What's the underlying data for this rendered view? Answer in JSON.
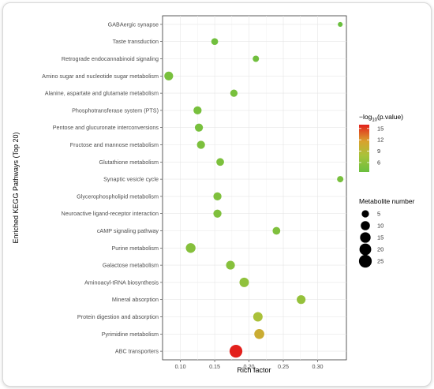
{
  "chart_data": {
    "type": "scatter",
    "title": "",
    "xlabel": "Rich factor",
    "ylabel": "Enriched KEGG Pathways (Top 20)",
    "xlim": [
      0.074,
      0.342
    ],
    "xticks": [
      0.1,
      0.15,
      0.2,
      0.25,
      0.3
    ],
    "xtick_labels": [
      "0.10",
      "0.15",
      "0.20",
      "0.25",
      "0.30"
    ],
    "grid": true,
    "legend_placement": "right",
    "categories": [
      "GABAergic synapse",
      "Taste transduction",
      "Retrograde endocannabinoid signaling",
      "Amino sugar and nucleotide sugar metabolism",
      "Alanine, aspartate and glutamate metabolism",
      "Phosphotransferase system (PTS)",
      "Pentose and glucuronate interconversions",
      "Fructose and mannose metabolism",
      "Glutathione metabolism",
      "Synaptic vesicle cycle",
      "Glycerophospholipid metabolism",
      "Neuroactive ligand-receptor interaction",
      "cAMP signaling pathway",
      "Purine metabolism",
      "Galactose metabolism",
      "Aminoacyl-tRNA biosynthesis",
      "Mineral absorption",
      "Protein digestion and absorption",
      "Pyrimidine metabolism",
      "ABC transporters"
    ],
    "points": [
      {
        "pathway": "GABAergic synapse",
        "rich_factor": 0.333,
        "count": 1,
        "neg_log10_p": 3.5
      },
      {
        "pathway": "Taste transduction",
        "rich_factor": 0.15,
        "count": 4,
        "neg_log10_p": 4.0
      },
      {
        "pathway": "Retrograde endocannabinoid signaling",
        "rich_factor": 0.21,
        "count": 3,
        "neg_log10_p": 4.0
      },
      {
        "pathway": "Amino sugar and nucleotide sugar metabolism",
        "rich_factor": 0.083,
        "count": 9,
        "neg_log10_p": 4.5
      },
      {
        "pathway": "Alanine, aspartate and glutamate metabolism",
        "rich_factor": 0.178,
        "count": 5,
        "neg_log10_p": 4.5
      },
      {
        "pathway": "Phosphotransferase system (PTS)",
        "rich_factor": 0.125,
        "count": 7,
        "neg_log10_p": 4.5
      },
      {
        "pathway": "Pentose and glucuronate interconversions",
        "rich_factor": 0.127,
        "count": 7,
        "neg_log10_p": 4.5
      },
      {
        "pathway": "Fructose and mannose metabolism",
        "rich_factor": 0.13,
        "count": 7,
        "neg_log10_p": 4.8
      },
      {
        "pathway": "Glutathione metabolism",
        "rich_factor": 0.158,
        "count": 6,
        "neg_log10_p": 4.8
      },
      {
        "pathway": "Synaptic vesicle cycle",
        "rich_factor": 0.333,
        "count": 3,
        "neg_log10_p": 4.5
      },
      {
        "pathway": "Glycerophospholipid metabolism",
        "rich_factor": 0.154,
        "count": 7,
        "neg_log10_p": 5.0
      },
      {
        "pathway": "Neuroactive ligand-receptor interaction",
        "rich_factor": 0.154,
        "count": 7,
        "neg_log10_p": 5.0
      },
      {
        "pathway": "cAMP signaling pathway",
        "rich_factor": 0.24,
        "count": 6,
        "neg_log10_p": 5.0
      },
      {
        "pathway": "Purine metabolism",
        "rich_factor": 0.115,
        "count": 12,
        "neg_log10_p": 5.5
      },
      {
        "pathway": "Galactose metabolism",
        "rich_factor": 0.173,
        "count": 9,
        "neg_log10_p": 5.5
      },
      {
        "pathway": "Aminoacyl-tRNA biosynthesis",
        "rich_factor": 0.193,
        "count": 11,
        "neg_log10_p": 6.2
      },
      {
        "pathway": "Mineral absorption",
        "rich_factor": 0.276,
        "count": 9,
        "neg_log10_p": 6.5
      },
      {
        "pathway": "Protein digestion and absorption",
        "rich_factor": 0.213,
        "count": 11,
        "neg_log10_p": 8.0
      },
      {
        "pathway": "Pyrimidine metabolism",
        "rich_factor": 0.215,
        "count": 13,
        "neg_log10_p": 10.5
      },
      {
        "pathway": "ABC transporters",
        "rich_factor": 0.181,
        "count": 25,
        "neg_log10_p": 16.0
      }
    ],
    "color_legend": {
      "title_prefix": "−log",
      "title_sub": "10",
      "title_suffix": "(p.value)",
      "ticks": [
        6,
        9,
        12,
        15
      ],
      "tick_labels": [
        "6",
        "9",
        "12",
        "15"
      ],
      "range": [
        3.5,
        16.0
      ],
      "low_color": "#6abf3e",
      "high_color": "#e3201c"
    },
    "size_legend": {
      "title": "Metabolite number",
      "values": [
        5,
        10,
        15,
        20,
        25
      ],
      "labels": [
        "5",
        "10",
        "15",
        "20",
        "25"
      ]
    }
  }
}
